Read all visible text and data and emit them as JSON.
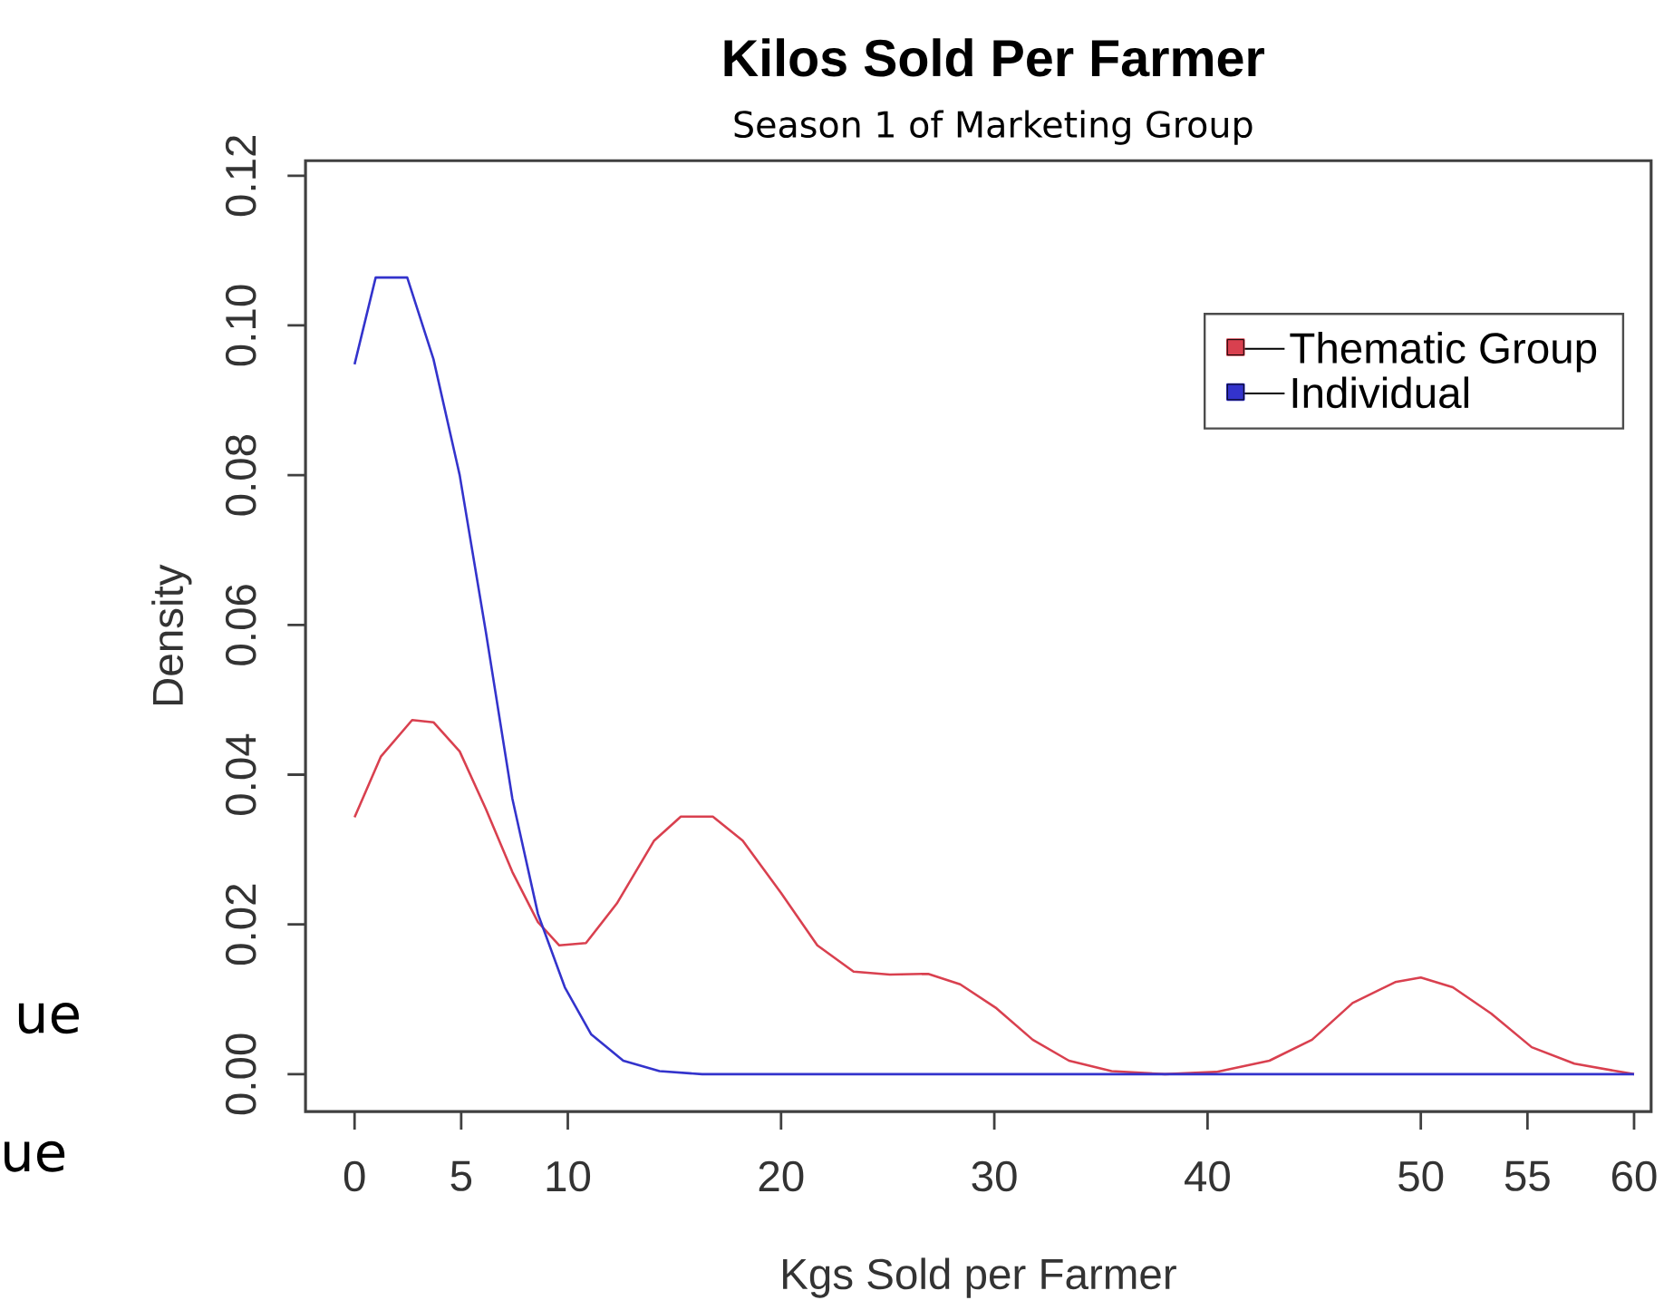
{
  "chart_data": {
    "type": "line",
    "title": "Kilos Sold Per Farmer",
    "subtitle": "Season 1 of Marketing Group",
    "xlabel": "Kgs Sold per Farmer",
    "ylabel": "Density",
    "xlim": [
      -2.3,
      60.8
    ],
    "ylim": [
      -0.005,
      0.122
    ],
    "xticks": [
      0,
      5,
      10,
      20,
      30,
      40,
      50,
      55,
      60
    ],
    "yticks": [
      {
        "value": 0,
        "label": "0.00"
      },
      {
        "value": 0.02,
        "label": "0.02"
      },
      {
        "value": 0.04,
        "label": "0.04"
      },
      {
        "value": 0.06,
        "label": "0.06"
      },
      {
        "value": 0.08,
        "label": "0.08"
      },
      {
        "value": 0.1,
        "label": "0.10"
      },
      {
        "value": 0.12,
        "label": "0.12"
      }
    ],
    "legend": "top right",
    "grid": false,
    "annotations": [
      "ue",
      "ue"
    ],
    "series": [
      {
        "name": "Thematic Group",
        "color": "#d9404f",
        "x": [
          0,
          1.23,
          2.7,
          3.7,
          4.93,
          6.16,
          7.4,
          8.6,
          9.6,
          10.85,
          12.3,
          14.05,
          15.3,
          16.8,
          18.2,
          20,
          21.7,
          23.4,
          25.1,
          26.9,
          28.4,
          30.1,
          31.8,
          33.5,
          35.5,
          38,
          40.4,
          42.9,
          44.9,
          46.8,
          48.8,
          50,
          51.5,
          53.3,
          55.2,
          57.2,
          60
        ],
        "values": [
          0.0343,
          0.0424,
          0.0473,
          0.047,
          0.0431,
          0.0354,
          0.027,
          0.0203,
          0.0172,
          0.0175,
          0.0228,
          0.0312,
          0.0344,
          0.0344,
          0.0312,
          0.0242,
          0.0172,
          0.0137,
          0.0133,
          0.0134,
          0.012,
          0.0088,
          0.0046,
          0.0018,
          0.0004,
          0,
          0.0003,
          0.0018,
          0.0046,
          0.0095,
          0.0123,
          0.0129,
          0.0116,
          0.0081,
          0.0036,
          0.0014,
          0
        ]
      },
      {
        "name": "Individual",
        "color": "#3333cc",
        "x": [
          0,
          0.99,
          2.47,
          3.7,
          4.93,
          6.16,
          7.4,
          8.6,
          9.86,
          11.1,
          12.6,
          14.3,
          16.3,
          30,
          45,
          60
        ],
        "values": [
          0.0948,
          0.1064,
          0.1064,
          0.0955,
          0.08,
          0.059,
          0.0368,
          0.0214,
          0.0116,
          0.0053,
          0.0018,
          0.0004,
          0,
          0,
          0,
          0
        ]
      }
    ]
  }
}
